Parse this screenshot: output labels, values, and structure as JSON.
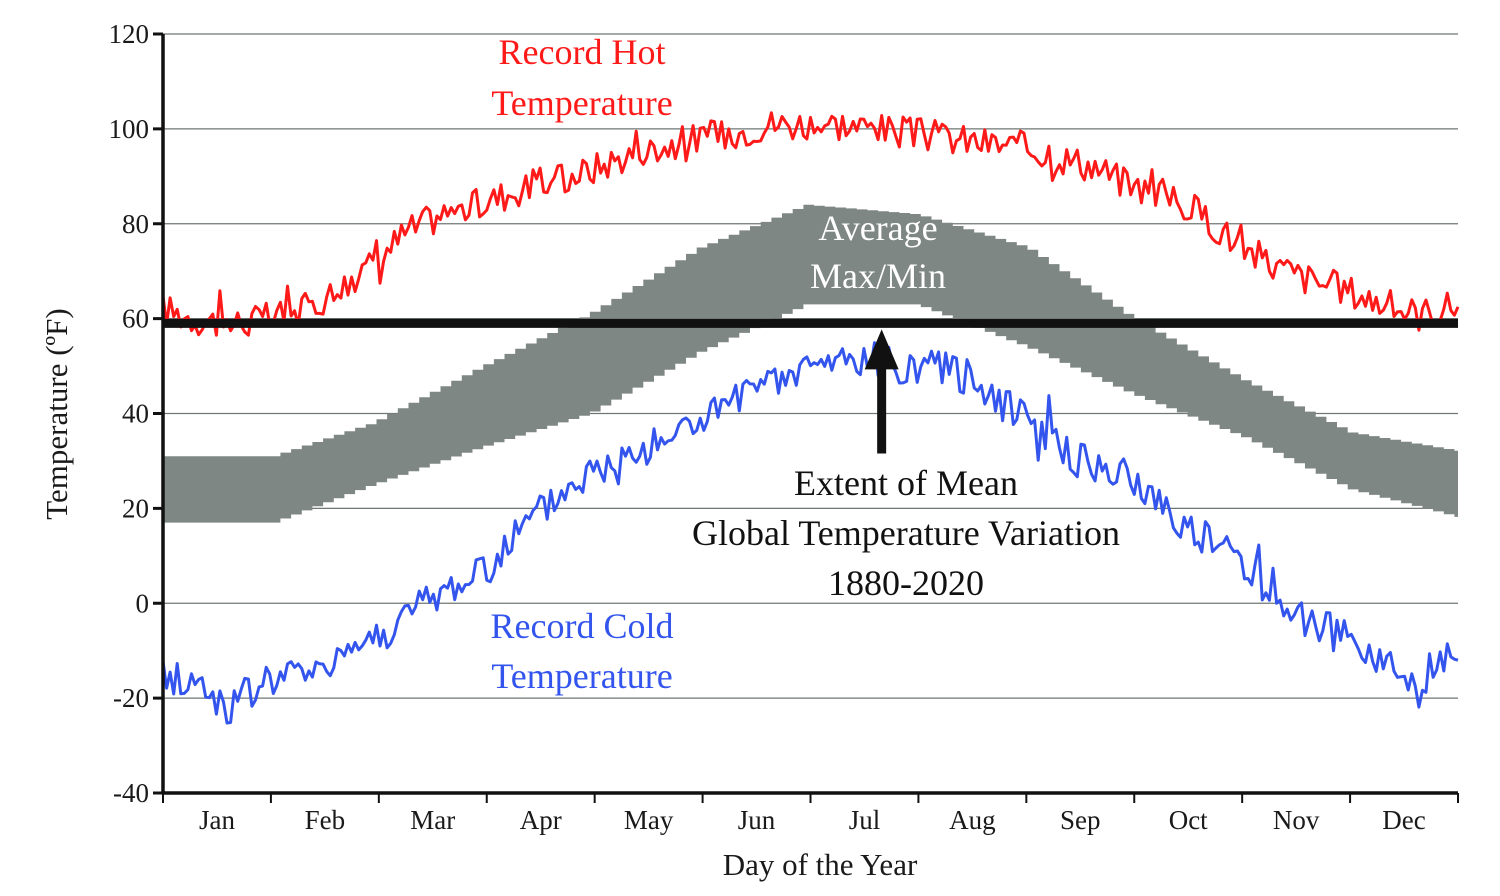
{
  "chart_data": {
    "type": "line",
    "xlabel": "Day of the Year",
    "ylabel": "Temperature (ºF)",
    "ylim": [
      -40,
      120
    ],
    "xlim": [
      1,
      365
    ],
    "grid": true,
    "yticks": [
      120,
      100,
      80,
      60,
      40,
      20,
      0,
      -20,
      -40
    ],
    "months": [
      "Jan",
      "Feb",
      "Mar",
      "Apr",
      "May",
      "Jun",
      "Jul",
      "Aug",
      "Sep",
      "Oct",
      "Nov",
      "Dec"
    ],
    "annotations": {
      "hot": [
        "Record Hot",
        "Temperature"
      ],
      "cold": [
        "Record Cold",
        "Temperature"
      ],
      "avg": [
        "Average",
        "Max/Min"
      ],
      "mean": [
        "Extent of Mean",
        "Global Temperature Variation",
        "1880-2020"
      ]
    },
    "colors": {
      "hot": "#ff1a1a",
      "cold": "#3355ee",
      "band": "#7f8784",
      "mean": "#111111"
    },
    "series": [
      {
        "x": [
          1,
          10,
          20,
          31,
          41,
          50,
          59,
          69,
          79,
          90,
          100,
          110,
          120,
          130,
          140,
          151,
          161,
          171,
          181,
          191,
          201,
          212,
          222,
          232,
          243,
          253,
          263,
          273,
          283,
          293,
          304,
          314,
          324,
          334,
          344,
          354,
          365
        ],
        "values": [
          62,
          60,
          59,
          60,
          62,
          66,
          71,
          78,
          82,
          84,
          87,
          89,
          91,
          94,
          96,
          98,
          99,
          101,
          101,
          101,
          100,
          99,
          98,
          97,
          96,
          94,
          92,
          88,
          86,
          82,
          75,
          71,
          68,
          66,
          63,
          61,
          63
        ]
      },
      {
        "x": [
          1,
          10,
          20,
          31,
          41,
          50,
          59,
          69,
          79,
          90,
          100,
          110,
          120,
          130,
          140,
          151,
          161,
          171,
          181,
          191,
          201,
          212,
          222,
          232,
          243,
          253,
          263,
          273,
          283,
          293,
          304,
          314,
          324,
          334,
          344,
          354,
          365
        ],
        "values": [
          -15,
          -17,
          -22,
          -16,
          -15,
          -11,
          -8,
          -3,
          2,
          6,
          14,
          21,
          27,
          30,
          34,
          38,
          42,
          45,
          49,
          51,
          51,
          50,
          49,
          46,
          40,
          32,
          29,
          26,
          20,
          14,
          9,
          1,
          -4,
          -8,
          -12,
          -18,
          -10
        ]
      }
    ],
    "band": {
      "x": [
        1,
        31,
        59,
        90,
        120,
        151,
        181,
        212,
        243,
        273,
        304,
        334,
        365
      ],
      "upper": [
        31,
        31,
        38,
        50,
        61,
        75,
        84,
        82,
        75,
        60,
        47,
        36,
        32
      ],
      "lower": [
        17,
        17,
        25,
        33,
        40,
        53,
        63,
        63,
        54,
        44,
        35,
        24,
        18
      ]
    },
    "mean_line": 59,
    "arrow": {
      "x": 203,
      "y_from": 40,
      "y_to": 59
    }
  }
}
